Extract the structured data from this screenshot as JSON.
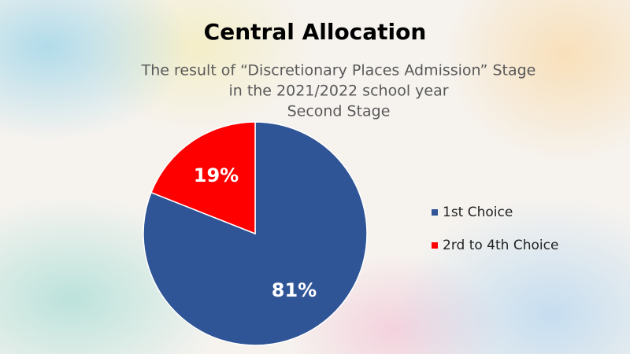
{
  "chart_data": {
    "type": "pie",
    "title": "Central Allocation",
    "subtitle": [
      "The result of “Discretionary Places Admission” Stage",
      "in the 2021/2022 school year",
      "Second Stage"
    ],
    "categories": [
      "1st Choice",
      "2rd to 4th Choice"
    ],
    "values": [
      81,
      19
    ],
    "value_labels": [
      "81%",
      "19%"
    ],
    "colors": [
      "#2f5597",
      "#ff0000"
    ],
    "legend": "right"
  }
}
